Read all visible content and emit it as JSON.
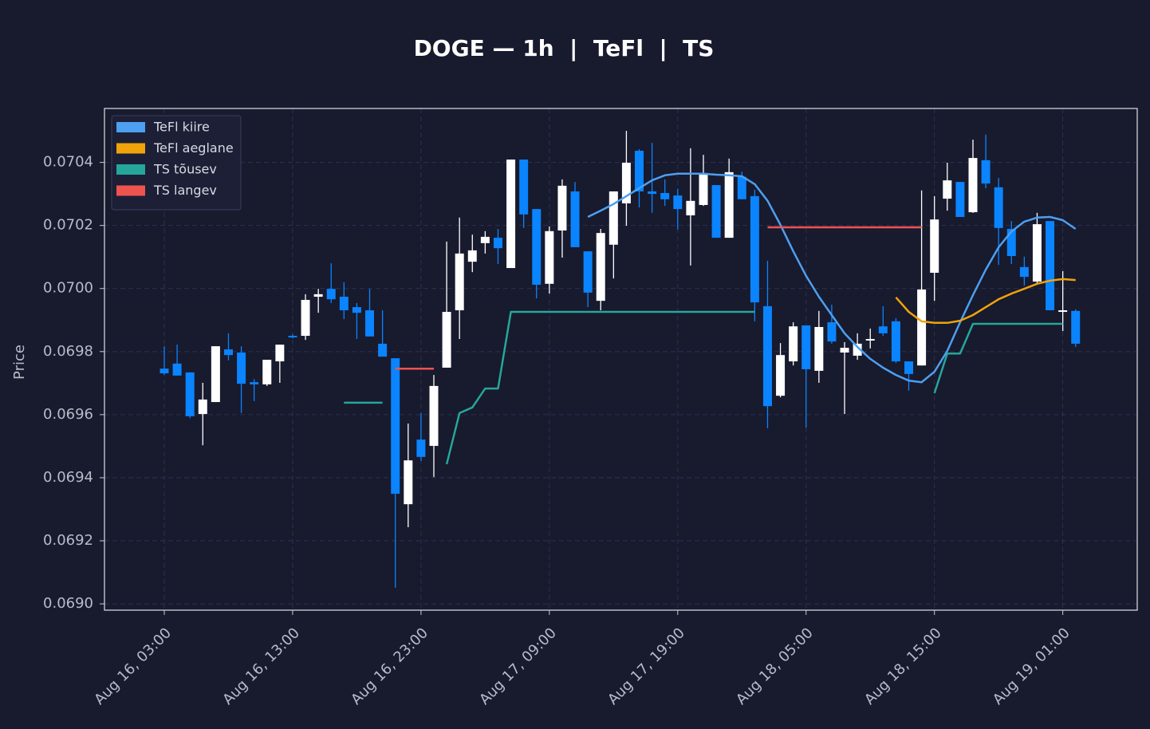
{
  "chart_data": {
    "type": "candlestick",
    "title": "DOGE — 1h  |  TeFl  |  TS",
    "ylabel": "Price",
    "ylim": [
      0.06898,
      0.070571
    ],
    "yticks": [
      {
        "value": 0.069,
        "label": "0.0690"
      },
      0.0692,
      0.0694,
      0.0696,
      0.0698,
      {
        "value": 0.07,
        "label": "0.0700"
      },
      0.0702,
      0.0704
    ],
    "xlim": [
      -4.66,
      75.8
    ],
    "xticks": [
      {
        "value": 0,
        "label": "Aug 16, 03:00"
      },
      {
        "value": 10,
        "label": "Aug 16, 13:00"
      },
      {
        "value": 20,
        "label": "Aug 16, 23:00"
      },
      {
        "value": 30,
        "label": "Aug 17, 09:00"
      },
      {
        "value": 40,
        "label": "Aug 17, 19:00"
      },
      {
        "value": 50,
        "label": "Aug 18, 05:00"
      },
      {
        "value": 60,
        "label": "Aug 18, 15:00"
      },
      {
        "value": 70,
        "label": "Aug 19, 01:00"
      }
    ],
    "grid": true,
    "legend": "upper left",
    "up_color": "#ffffff",
    "down_color": "#0a84ff",
    "open": [
      0.069746,
      0.069762,
      0.069734,
      0.069602,
      0.06964,
      0.069807,
      0.069797,
      0.069703,
      0.069696,
      0.069769,
      0.06985,
      0.06985,
      0.069974,
      0.069999,
      0.069974,
      0.069941,
      0.069931,
      0.069825,
      0.069779,
      0.069316,
      0.069521,
      0.069501,
      0.069749,
      0.069931,
      0.070085,
      0.070144,
      0.070161,
      0.070065,
      0.070409,
      0.070252,
      0.070015,
      0.070184,
      0.070308,
      0.070118,
      0.069961,
      0.070139,
      0.07027,
      0.070437,
      0.070308,
      0.070303,
      0.070295,
      0.070232,
      0.070265,
      0.070328,
      0.070161,
      0.070354,
      0.070293,
      0.069944,
      0.06966,
      0.069769,
      0.069883,
      0.069739,
      0.069893,
      0.069797,
      0.069787,
      0.069835,
      0.06988,
      0.069896,
      0.069769,
      0.069756,
      0.07005,
      0.070285,
      0.070338,
      0.070242,
      0.070407,
      0.070321,
      0.070189,
      0.070068,
      0.070022,
      0.070214,
      0.069926,
      0.069929
    ],
    "high": [
      0.069817,
      0.069822,
      0.069734,
      0.069701,
      0.069817,
      0.069858,
      0.069817,
      0.069713,
      0.069774,
      0.069822,
      0.069855,
      0.069982,
      0.069999,
      0.07008,
      0.07002,
      0.069954,
      0.069999,
      0.069931,
      0.069779,
      0.069572,
      0.069605,
      0.069726,
      0.070149,
      0.070225,
      0.070171,
      0.070182,
      0.070189,
      0.070409,
      0.070409,
      0.070252,
      0.070197,
      0.070346,
      0.070338,
      0.070118,
      0.070189,
      0.070308,
      0.0705,
      0.070442,
      0.070462,
      0.070346,
      0.070316,
      0.070445,
      0.070424,
      0.070328,
      0.070412,
      0.070371,
      0.070313,
      0.070088,
      0.069827,
      0.069893,
      0.069883,
      0.069929,
      0.069949,
      0.06983,
      0.069858,
      0.069873,
      0.069944,
      0.069906,
      0.069769,
      0.070311,
      0.070293,
      0.070399,
      0.070338,
      0.070472,
      0.070488,
      0.070351,
      0.070214,
      0.070101,
      0.07024,
      0.070214,
      0.070055,
      0.069934
    ],
    "low": [
      0.069726,
      0.069724,
      0.069589,
      0.069503,
      0.06964,
      0.069772,
      0.069605,
      0.069643,
      0.069691,
      0.069701,
      0.069842,
      0.069837,
      0.069923,
      0.069954,
      0.069903,
      0.06984,
      0.069848,
      0.069784,
      0.069051,
      0.069243,
      0.069453,
      0.069402,
      0.069749,
      0.06984,
      0.070052,
      0.070111,
      0.070078,
      0.070065,
      0.070192,
      0.069969,
      0.069984,
      0.070098,
      0.070131,
      0.069941,
      0.069931,
      0.070032,
      0.070199,
      0.070257,
      0.07024,
      0.070262,
      0.070187,
      0.070073,
      0.070262,
      0.070161,
      0.070161,
      0.070283,
      0.069896,
      0.069557,
      0.069655,
      0.069756,
      0.069559,
      0.069701,
      0.069825,
      0.069602,
      0.069774,
      0.06981,
      0.06985,
      0.069764,
      0.069676,
      0.069756,
      0.069961,
      0.070247,
      0.070227,
      0.07024,
      0.070318,
      0.070075,
      0.070078,
      0.070009,
      0.070015,
      0.069931,
      0.069865,
      0.069815
    ],
    "close": [
      0.069731,
      0.069724,
      0.069595,
      0.069648,
      0.069817,
      0.069789,
      0.069698,
      0.069696,
      0.069774,
      0.069822,
      0.069848,
      0.069964,
      0.069982,
      0.069966,
      0.069931,
      0.069923,
      0.069848,
      0.069784,
      0.069349,
      0.069455,
      0.069466,
      0.069691,
      0.069926,
      0.070111,
      0.070121,
      0.070164,
      0.070128,
      0.070409,
      0.070235,
      0.070012,
      0.070182,
      0.070326,
      0.070131,
      0.069987,
      0.070176,
      0.070308,
      0.070399,
      0.070308,
      0.0703,
      0.070283,
      0.070252,
      0.070278,
      0.070361,
      0.070161,
      0.070369,
      0.070283,
      0.069956,
      0.069627,
      0.069789,
      0.06988,
      0.069744,
      0.069878,
      0.069832,
      0.069812,
      0.069825,
      0.06984,
      0.069858,
      0.069769,
      0.069729,
      0.069997,
      0.070219,
      0.070343,
      0.070227,
      0.070414,
      0.070333,
      0.070192,
      0.070103,
      0.070037,
      0.070204,
      0.069931,
      0.069931,
      0.069825
    ],
    "series": [
      {
        "name": "TeFl kiire",
        "color": "#4d9ff0",
        "values": [
          null,
          null,
          null,
          null,
          null,
          null,
          null,
          null,
          null,
          null,
          null,
          null,
          null,
          null,
          null,
          null,
          null,
          null,
          null,
          null,
          null,
          null,
          null,
          null,
          null,
          null,
          null,
          null,
          null,
          null,
          null,
          null,
          null,
          0.070227,
          0.070247,
          0.070268,
          0.070293,
          0.070318,
          0.070343,
          0.070359,
          0.070364,
          0.070364,
          0.070364,
          0.070361,
          0.070359,
          0.070356,
          0.070331,
          0.070278,
          0.070202,
          0.070118,
          0.07004,
          0.069974,
          0.069916,
          0.069858,
          0.069815,
          0.069777,
          0.069749,
          0.069726,
          0.069708,
          0.069703,
          0.069736,
          0.069802,
          0.069893,
          0.069979,
          0.07006,
          0.070131,
          0.070181,
          0.070212,
          0.070225,
          0.070227,
          0.070217,
          0.070189
        ]
      },
      {
        "name": "TeFl aeglane",
        "color": "#f0a30a",
        "values": [
          null,
          null,
          null,
          null,
          null,
          null,
          null,
          null,
          null,
          null,
          null,
          null,
          null,
          null,
          null,
          null,
          null,
          null,
          null,
          null,
          null,
          null,
          null,
          null,
          null,
          null,
          null,
          null,
          null,
          null,
          null,
          null,
          null,
          null,
          null,
          null,
          null,
          null,
          null,
          null,
          null,
          null,
          null,
          null,
          null,
          null,
          null,
          null,
          null,
          null,
          null,
          null,
          null,
          null,
          null,
          null,
          null,
          0.069972,
          0.069926,
          0.069896,
          0.069891,
          0.069891,
          0.069898,
          0.069916,
          0.069941,
          0.069966,
          0.069984,
          0.069999,
          0.070015,
          0.070025,
          0.07003,
          0.070027
        ]
      },
      {
        "name": "TS tõusev",
        "color": "#26a69a",
        "values": [
          null,
          null,
          null,
          null,
          null,
          null,
          null,
          null,
          null,
          null,
          null,
          null,
          null,
          null,
          0.069638,
          0.069638,
          0.069638,
          0.069638,
          null,
          null,
          null,
          null,
          0.069443,
          0.069605,
          0.069623,
          0.069683,
          0.069683,
          0.069926,
          0.069926,
          0.069926,
          0.069926,
          0.069926,
          0.069926,
          0.069926,
          0.069926,
          0.069926,
          0.069926,
          0.069926,
          0.069926,
          0.069926,
          0.069926,
          0.069926,
          0.069926,
          0.069926,
          0.069926,
          0.069926,
          0.069926,
          null,
          null,
          null,
          null,
          null,
          null,
          null,
          null,
          null,
          null,
          null,
          null,
          null,
          0.069668,
          0.069794,
          0.069794,
          0.069888,
          0.069888,
          0.069888,
          0.069888,
          0.069888,
          0.069888,
          0.069888,
          0.069888,
          null
        ]
      },
      {
        "name": "TS langev",
        "color": "#ef5350",
        "values": [
          null,
          null,
          null,
          null,
          null,
          null,
          null,
          null,
          null,
          null,
          null,
          null,
          null,
          null,
          null,
          null,
          null,
          null,
          0.069746,
          0.069746,
          0.069746,
          0.069746,
          null,
          null,
          null,
          null,
          null,
          null,
          null,
          null,
          null,
          null,
          null,
          null,
          null,
          null,
          null,
          null,
          null,
          null,
          null,
          null,
          null,
          null,
          null,
          null,
          null,
          0.070194,
          0.070194,
          0.070194,
          0.070194,
          0.070194,
          0.070194,
          0.070194,
          0.070194,
          0.070194,
          0.070194,
          0.070194,
          0.070194,
          0.070194,
          null,
          null,
          null,
          null,
          null,
          null,
          null,
          null,
          null,
          null,
          null,
          null
        ]
      }
    ]
  }
}
